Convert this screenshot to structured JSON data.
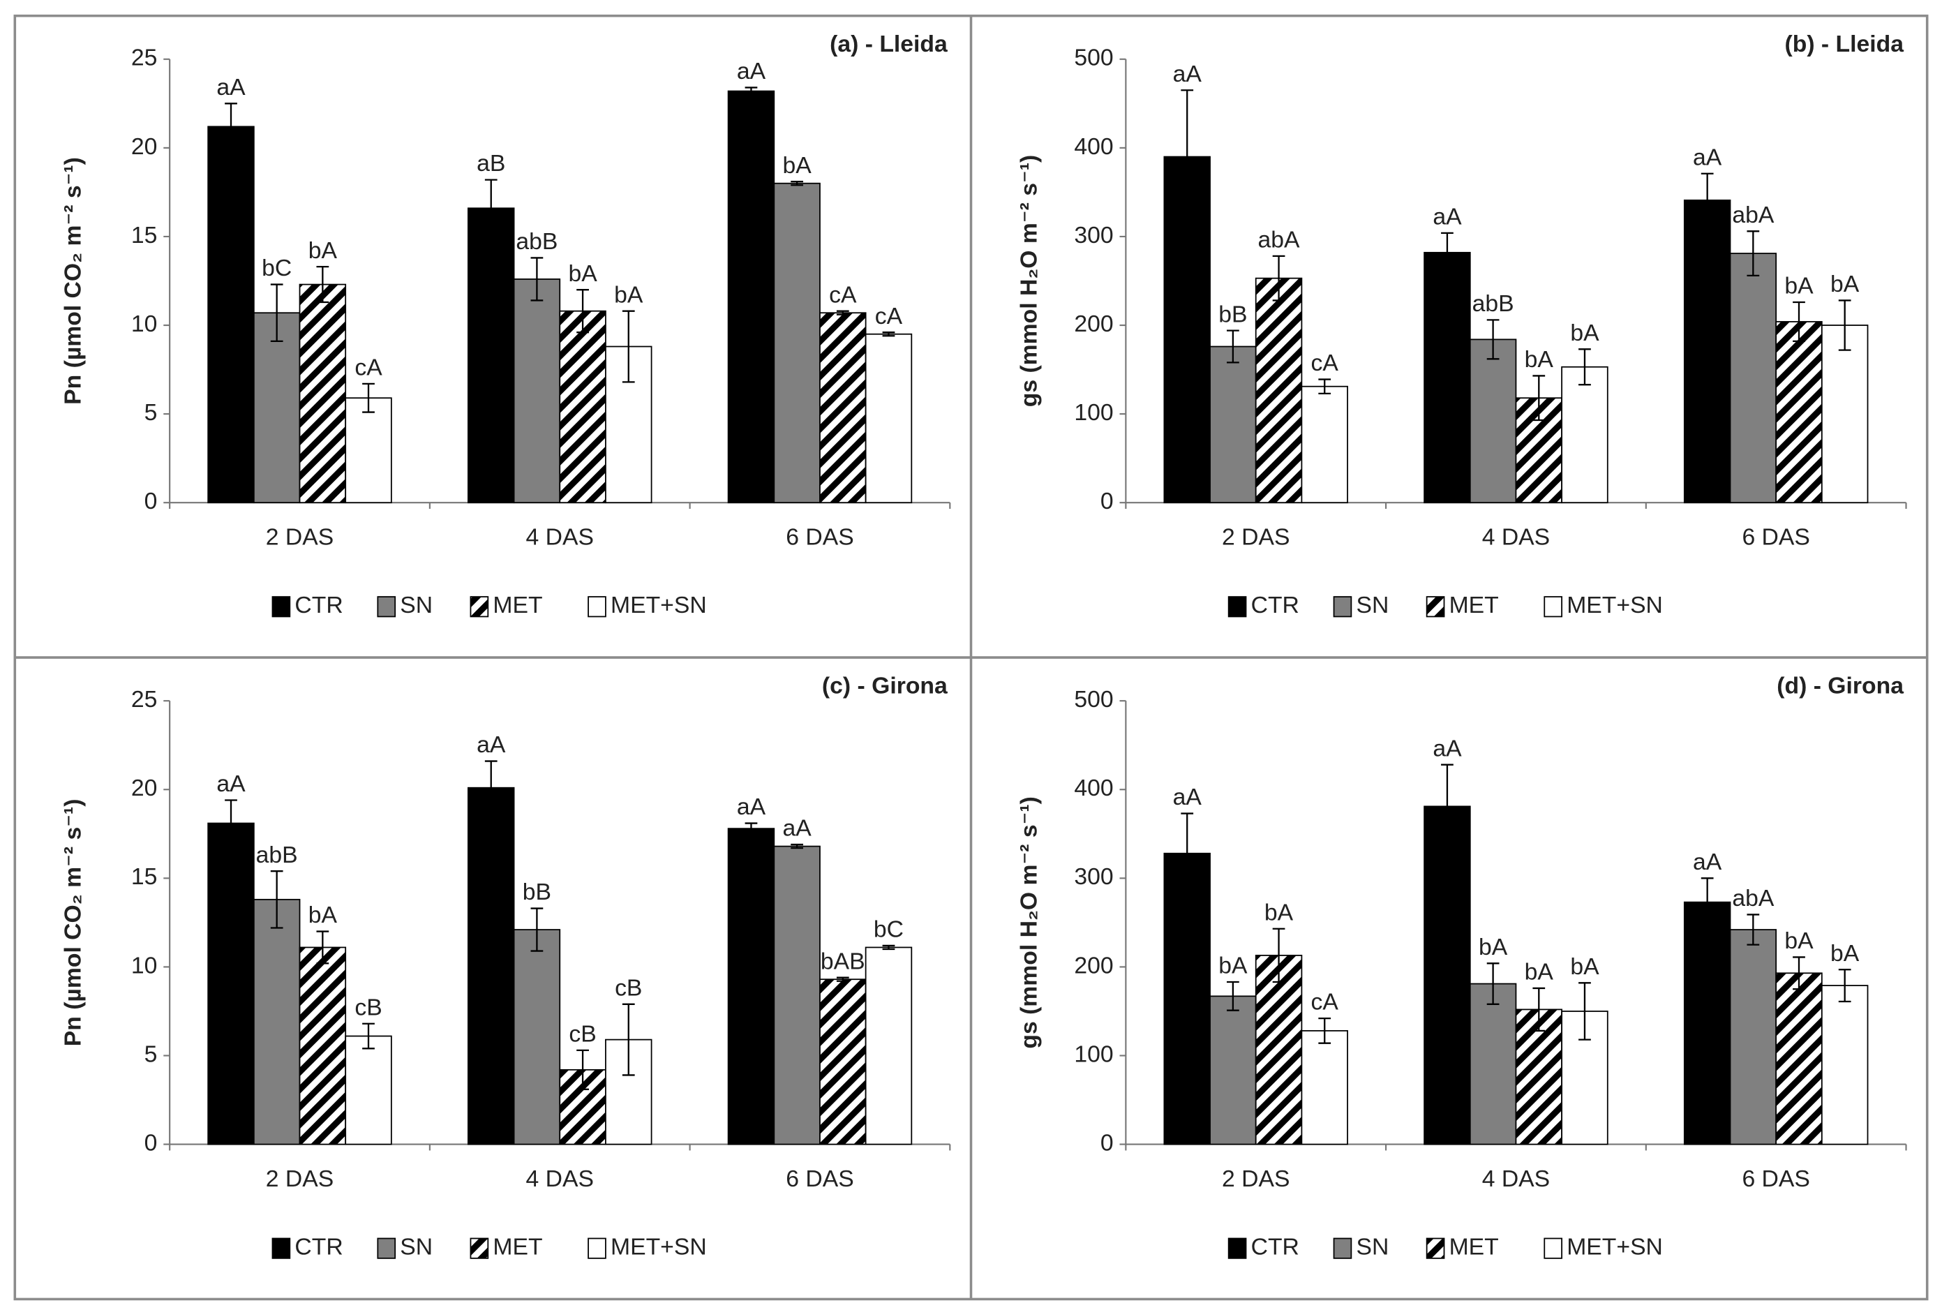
{
  "chart_data": [
    {
      "type": "bar",
      "title": "(a) - Lleida",
      "ylabel": "Pn (µmol CO₂ m⁻² s⁻¹)",
      "categories": [
        "2 DAS",
        "4 DAS",
        "6 DAS"
      ],
      "ylim": [
        0,
        25
      ],
      "yticks": [
        0,
        5,
        10,
        15,
        20,
        25
      ],
      "series": [
        {
          "name": "CTR",
          "color": "#000000",
          "values": [
            21.2,
            16.6,
            23.2
          ],
          "errors": [
            1.3,
            1.6,
            0.2
          ],
          "labels": [
            "aA",
            "aB",
            "aA"
          ]
        },
        {
          "name": "SN",
          "color": "#808080",
          "values": [
            10.7,
            12.6,
            18.0
          ],
          "errors": [
            1.6,
            1.2,
            0.1
          ],
          "labels": [
            "bC",
            "abB",
            "bA"
          ]
        },
        {
          "name": "MET",
          "color": "#000000",
          "pattern": "hatch",
          "values": [
            12.3,
            10.8,
            10.7
          ],
          "errors": [
            1.0,
            1.2,
            0.1
          ],
          "labels": [
            "bA",
            "bA",
            "cA"
          ]
        },
        {
          "name": "MET+SN",
          "color": "#ffffff",
          "values": [
            5.9,
            8.8,
            9.5
          ],
          "errors": [
            0.8,
            2.0,
            0.1
          ],
          "labels": [
            "cA",
            "bA",
            "cA"
          ]
        }
      ]
    },
    {
      "type": "bar",
      "title": "(b) - Lleida",
      "ylabel": "gs (mmol H₂O m⁻² s⁻¹)",
      "categories": [
        "2 DAS",
        "4 DAS",
        "6 DAS"
      ],
      "ylim": [
        0,
        500
      ],
      "yticks": [
        0,
        100,
        200,
        300,
        400,
        500
      ],
      "series": [
        {
          "name": "CTR",
          "color": "#000000",
          "values": [
            390,
            282,
            341
          ],
          "errors": [
            75,
            22,
            30
          ],
          "labels": [
            "aA",
            "aA",
            "aA"
          ]
        },
        {
          "name": "SN",
          "color": "#808080",
          "values": [
            176,
            184,
            281
          ],
          "errors": [
            18,
            22,
            25
          ],
          "labels": [
            "bB",
            "abB",
            "abA"
          ]
        },
        {
          "name": "MET",
          "color": "#000000",
          "pattern": "hatch",
          "values": [
            253,
            118,
            204
          ],
          "errors": [
            25,
            25,
            22
          ],
          "labels": [
            "abA",
            "bA",
            "bA"
          ]
        },
        {
          "name": "MET+SN",
          "color": "#ffffff",
          "values": [
            131,
            153,
            200
          ],
          "errors": [
            8,
            20,
            28
          ],
          "labels": [
            "cA",
            "bA",
            "bA"
          ]
        }
      ]
    },
    {
      "type": "bar",
      "title": "(c) - Girona",
      "ylabel": "Pn (µmol CO₂ m⁻² s⁻¹)",
      "categories": [
        "2 DAS",
        "4 DAS",
        "6 DAS"
      ],
      "ylim": [
        0,
        25
      ],
      "yticks": [
        0,
        5,
        10,
        15,
        20,
        25
      ],
      "series": [
        {
          "name": "CTR",
          "color": "#000000",
          "values": [
            18.1,
            20.1,
            17.8
          ],
          "errors": [
            1.3,
            1.5,
            0.3
          ],
          "labels": [
            "aA",
            "aA",
            "aA"
          ]
        },
        {
          "name": "SN",
          "color": "#808080",
          "values": [
            13.8,
            12.1,
            16.8
          ],
          "errors": [
            1.6,
            1.2,
            0.1
          ],
          "labels": [
            "abB",
            "bB",
            "aA"
          ]
        },
        {
          "name": "MET",
          "color": "#000000",
          "pattern": "hatch",
          "values": [
            11.1,
            4.2,
            9.3
          ],
          "errors": [
            0.9,
            1.1,
            0.1
          ],
          "labels": [
            "bA",
            "cB",
            "bAB"
          ]
        },
        {
          "name": "MET+SN",
          "color": "#ffffff",
          "values": [
            6.1,
            5.9,
            11.1
          ],
          "errors": [
            0.7,
            2.0,
            0.1
          ],
          "labels": [
            "cB",
            "cB",
            "bC"
          ]
        }
      ]
    },
    {
      "type": "bar",
      "title": "(d) - Girona",
      "ylabel": "gs (mmol H₂O m⁻² s⁻¹)",
      "categories": [
        "2 DAS",
        "4 DAS",
        "6 DAS"
      ],
      "ylim": [
        0,
        500
      ],
      "yticks": [
        0,
        100,
        200,
        300,
        400,
        500
      ],
      "series": [
        {
          "name": "CTR",
          "color": "#000000",
          "values": [
            328,
            381,
            273
          ],
          "errors": [
            45,
            47,
            27
          ],
          "labels": [
            "aA",
            "aA",
            "aA"
          ]
        },
        {
          "name": "SN",
          "color": "#808080",
          "values": [
            167,
            181,
            242
          ],
          "errors": [
            16,
            23,
            17
          ],
          "labels": [
            "bA",
            "bA",
            "abA"
          ]
        },
        {
          "name": "MET",
          "color": "#000000",
          "pattern": "hatch",
          "values": [
            213,
            152,
            193
          ],
          "errors": [
            30,
            24,
            18
          ],
          "labels": [
            "bA",
            "bA",
            "bA"
          ]
        },
        {
          "name": "MET+SN",
          "color": "#ffffff",
          "values": [
            128,
            150,
            179
          ],
          "errors": [
            14,
            32,
            18
          ],
          "labels": [
            "cA",
            "bA",
            "bA"
          ]
        }
      ]
    }
  ]
}
